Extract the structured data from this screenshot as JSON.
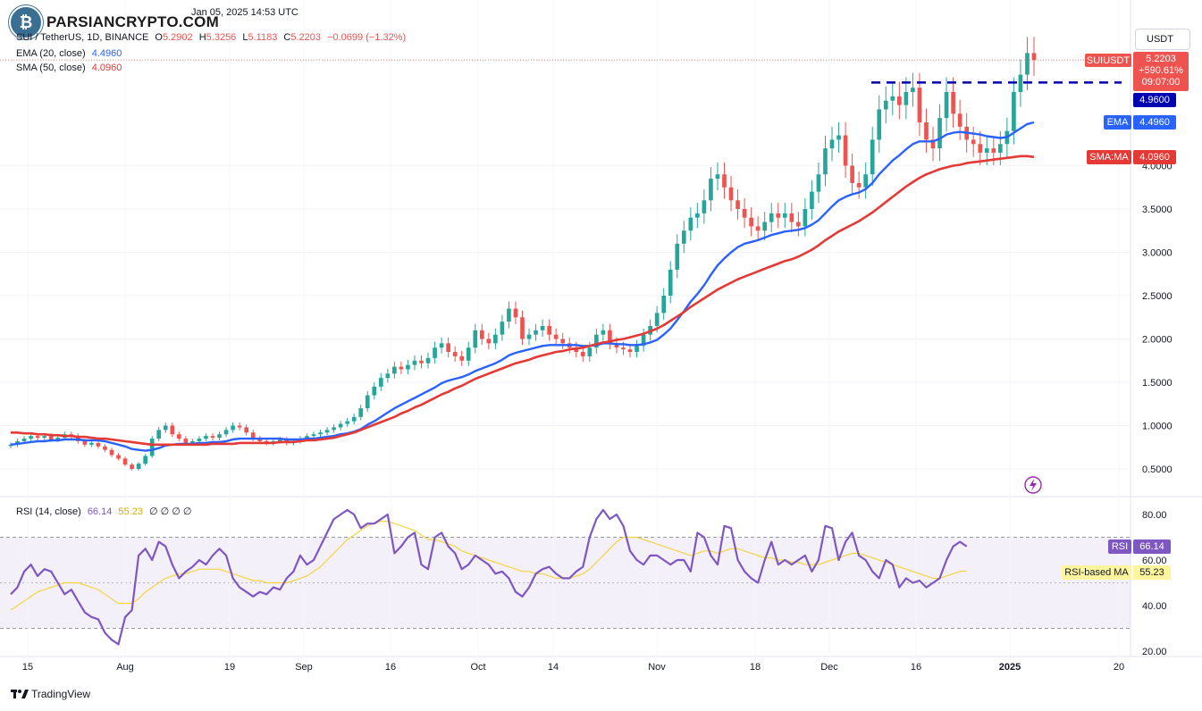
{
  "header": {
    "date_text": "Jan 05, 2025 14:53 UTC",
    "symbol": "SUI / TetherUS, 1D, BINANCE",
    "o_label": "O",
    "o_value": "5.2902",
    "h_label": "H",
    "h_value": "5.3256",
    "l_label": "L",
    "l_value": "5.1183",
    "c_label": "C",
    "c_value": "5.2203",
    "change": "−0.0699 (−1.32%)"
  },
  "indicators": {
    "ema_label": "EMA (20, close)",
    "ema_value": "4.4960",
    "sma_label": "SMA (50, close)",
    "sma_value": "4.0960",
    "rsi_label": "RSI (14, close)",
    "rsi_value": "66.14",
    "rsi_ma_value": "55.23",
    "rsi_extra": "∅ ∅ ∅ ∅"
  },
  "watermark": "PARSIANCRYPTO.COM",
  "currency_button": "USDT",
  "footer_brand": "TradingView",
  "colors": {
    "up": "#26a69a",
    "down": "#ef5350",
    "ema": "#2962ff",
    "sma": "#e53935",
    "rsi": "#7e57c2",
    "rsi_ma": "#f5d442",
    "level": "#0000b3"
  },
  "chart_data": {
    "type": "candlestick",
    "symbol": "SUIUSDT",
    "timeframe": "1D",
    "x_ticks": [
      "15",
      "Aug",
      "19",
      "Sep",
      "16",
      "Oct",
      "14",
      "Nov",
      "18",
      "Dec",
      "16",
      "2025",
      "20"
    ],
    "y_ticks": [
      "0.5000",
      "1.0000",
      "1.5000",
      "2.0000",
      "2.5000",
      "3.0000",
      "3.5000",
      "4.0000"
    ],
    "ylim": [
      0.0,
      5.6
    ],
    "rsi_ticks": [
      "20.00",
      "40.00",
      "60.00",
      "80.00"
    ],
    "rsi_ylim": [
      20,
      86
    ],
    "rsi_band": [
      30,
      70
    ],
    "horizontal_level": 4.96,
    "badges": {
      "symbol": "SUIUSDT",
      "price": "5.2203",
      "change": "+590.61%",
      "countdown": "09:07:00",
      "level": "4.9600",
      "ema_label": "EMA",
      "ema": "4.4960",
      "sma_label": "SMA:MA",
      "sma": "4.0960",
      "rsi_label": "RSI",
      "rsi": "66.14",
      "rsi_ma_label": "RSI-based MA",
      "rsi_ma": "55.23"
    },
    "close_series": [
      0.78,
      0.82,
      0.85,
      0.88,
      0.86,
      0.88,
      0.84,
      0.86,
      0.9,
      0.88,
      0.82,
      0.78,
      0.8,
      0.76,
      0.72,
      0.66,
      0.62,
      0.55,
      0.5,
      0.56,
      0.65,
      0.85,
      0.95,
      1.0,
      0.9,
      0.85,
      0.8,
      0.82,
      0.85,
      0.88,
      0.86,
      0.9,
      0.95,
      1.0,
      0.98,
      0.92,
      0.85,
      0.82,
      0.8,
      0.82,
      0.84,
      0.8,
      0.82,
      0.85,
      0.88,
      0.9,
      0.92,
      0.95,
      0.98,
      1.02,
      1.05,
      1.1,
      1.2,
      1.35,
      1.45,
      1.55,
      1.6,
      1.68,
      1.65,
      1.7,
      1.75,
      1.72,
      1.78,
      1.9,
      1.95,
      1.85,
      1.8,
      1.75,
      1.9,
      2.1,
      2.0,
      1.95,
      2.05,
      2.2,
      2.35,
      2.25,
      2.0,
      2.05,
      2.1,
      2.15,
      2.05,
      2.0,
      1.95,
      1.9,
      1.85,
      1.8,
      1.9,
      2.05,
      2.1,
      1.95,
      1.9,
      1.88,
      1.85,
      1.92,
      2.05,
      2.15,
      2.3,
      2.5,
      2.8,
      3.1,
      3.25,
      3.4,
      3.45,
      3.6,
      3.85,
      3.9,
      3.75,
      3.6,
      3.5,
      3.4,
      3.3,
      3.25,
      3.35,
      3.45,
      3.4,
      3.45,
      3.35,
      3.3,
      3.5,
      3.7,
      3.9,
      4.2,
      4.3,
      4.35,
      4.0,
      3.8,
      3.75,
      3.9,
      4.3,
      4.65,
      4.75,
      4.8,
      4.7,
      4.85,
      4.9,
      4.5,
      4.3,
      4.2,
      4.55,
      4.85,
      4.6,
      4.45,
      4.3,
      4.25,
      4.15,
      4.2,
      4.15,
      4.25,
      4.4,
      4.85,
      5.05,
      5.3,
      5.22
    ],
    "ema20": [
      0.78,
      0.79,
      0.8,
      0.81,
      0.82,
      0.82,
      0.83,
      0.83,
      0.84,
      0.84,
      0.84,
      0.83,
      0.83,
      0.83,
      0.82,
      0.8,
      0.78,
      0.76,
      0.73,
      0.72,
      0.71,
      0.72,
      0.74,
      0.77,
      0.78,
      0.79,
      0.79,
      0.79,
      0.8,
      0.8,
      0.81,
      0.81,
      0.82,
      0.84,
      0.85,
      0.85,
      0.85,
      0.85,
      0.85,
      0.85,
      0.85,
      0.84,
      0.84,
      0.84,
      0.85,
      0.85,
      0.86,
      0.87,
      0.88,
      0.9,
      0.91,
      0.93,
      0.96,
      1.01,
      1.05,
      1.1,
      1.15,
      1.2,
      1.24,
      1.28,
      1.32,
      1.36,
      1.4,
      1.44,
      1.49,
      1.52,
      1.54,
      1.56,
      1.59,
      1.63,
      1.66,
      1.69,
      1.72,
      1.76,
      1.81,
      1.84,
      1.86,
      1.88,
      1.9,
      1.92,
      1.93,
      1.93,
      1.93,
      1.93,
      1.93,
      1.92,
      1.92,
      1.93,
      1.95,
      1.95,
      1.94,
      1.94,
      1.93,
      1.93,
      1.94,
      1.96,
      1.99,
      2.05,
      2.12,
      2.22,
      2.32,
      2.43,
      2.52,
      2.62,
      2.74,
      2.85,
      2.93,
      3.0,
      3.06,
      3.1,
      3.12,
      3.14,
      3.17,
      3.2,
      3.22,
      3.24,
      3.25,
      3.26,
      3.28,
      3.32,
      3.37,
      3.45,
      3.53,
      3.6,
      3.64,
      3.67,
      3.69,
      3.73,
      3.8,
      3.9,
      3.98,
      4.06,
      4.12,
      4.19,
      4.25,
      4.28,
      4.28,
      4.28,
      4.31,
      4.36,
      4.38,
      4.39,
      4.38,
      4.37,
      4.36,
      4.34,
      4.33,
      4.32,
      4.33,
      4.38,
      4.43,
      4.48,
      4.5
    ],
    "sma50": [
      0.92,
      0.92,
      0.91,
      0.91,
      0.9,
      0.9,
      0.89,
      0.89,
      0.88,
      0.88,
      0.87,
      0.87,
      0.86,
      0.85,
      0.85,
      0.84,
      0.83,
      0.82,
      0.81,
      0.8,
      0.79,
      0.78,
      0.78,
      0.78,
      0.78,
      0.78,
      0.78,
      0.78,
      0.78,
      0.78,
      0.79,
      0.79,
      0.79,
      0.79,
      0.8,
      0.8,
      0.8,
      0.8,
      0.8,
      0.8,
      0.81,
      0.81,
      0.81,
      0.82,
      0.83,
      0.83,
      0.84,
      0.85,
      0.86,
      0.88,
      0.9,
      0.92,
      0.95,
      0.98,
      1.01,
      1.04,
      1.07,
      1.1,
      1.14,
      1.17,
      1.21,
      1.24,
      1.28,
      1.32,
      1.36,
      1.39,
      1.43,
      1.46,
      1.5,
      1.54,
      1.57,
      1.6,
      1.63,
      1.66,
      1.69,
      1.72,
      1.74,
      1.76,
      1.79,
      1.81,
      1.83,
      1.85,
      1.86,
      1.88,
      1.89,
      1.9,
      1.92,
      1.94,
      1.96,
      1.97,
      1.99,
      2.0,
      2.02,
      2.04,
      2.06,
      2.09,
      2.12,
      2.16,
      2.21,
      2.26,
      2.31,
      2.37,
      2.42,
      2.47,
      2.52,
      2.57,
      2.61,
      2.65,
      2.69,
      2.72,
      2.75,
      2.78,
      2.81,
      2.84,
      2.87,
      2.9,
      2.92,
      2.95,
      2.99,
      3.03,
      3.08,
      3.14,
      3.19,
      3.24,
      3.28,
      3.32,
      3.36,
      3.41,
      3.46,
      3.52,
      3.58,
      3.64,
      3.7,
      3.76,
      3.81,
      3.86,
      3.9,
      3.93,
      3.96,
      3.98,
      4.0,
      4.01,
      4.03,
      4.04,
      4.05,
      4.06,
      4.07,
      4.08,
      4.09,
      4.1,
      4.11,
      4.11,
      4.1
    ],
    "rsi": [
      45,
      48,
      55,
      58,
      53,
      56,
      55,
      50,
      45,
      47,
      42,
      37,
      35,
      34,
      28,
      25,
      23,
      35,
      38,
      62,
      65,
      60,
      68,
      66,
      58,
      52,
      55,
      57,
      60,
      58,
      62,
      65,
      62,
      52,
      48,
      46,
      44,
      46,
      45,
      48,
      47,
      52,
      55,
      62,
      58,
      60,
      66,
      72,
      78,
      80,
      82,
      80,
      74,
      76,
      76,
      78,
      80,
      63,
      66,
      70,
      72,
      58,
      56,
      70,
      72,
      66,
      63,
      56,
      58,
      62,
      60,
      58,
      54,
      55,
      52,
      46,
      44,
      48,
      54,
      56,
      57,
      54,
      52,
      52,
      55,
      57,
      70,
      78,
      82,
      78,
      80,
      75,
      64,
      60,
      58,
      62,
      62,
      60,
      58,
      60,
      60,
      55,
      72,
      70,
      62,
      58,
      75,
      74,
      60,
      55,
      52,
      50,
      60,
      68,
      58,
      60,
      58,
      60,
      62,
      55,
      60,
      75,
      74,
      60,
      68,
      72,
      62,
      60,
      55,
      52,
      60,
      58,
      48,
      52,
      50,
      51,
      48,
      50,
      52,
      60,
      66,
      68,
      66
    ],
    "rsi_ma": [
      38,
      40,
      42,
      44,
      46,
      47,
      48,
      49,
      50,
      50,
      50,
      49,
      48,
      47,
      45,
      43,
      41,
      41,
      41,
      43,
      46,
      48,
      50,
      52,
      53,
      54,
      54,
      55,
      56,
      56,
      56,
      56,
      55,
      54,
      53,
      52,
      51,
      51,
      50,
      50,
      50,
      50,
      51,
      52,
      53,
      55,
      57,
      60,
      63,
      66,
      69,
      71,
      73,
      75,
      76,
      77,
      77,
      76,
      75,
      74,
      73,
      71,
      69,
      69,
      68,
      67,
      66,
      64,
      63,
      62,
      61,
      60,
      59,
      58,
      57,
      56,
      55,
      55,
      54,
      54,
      53,
      52,
      52,
      52,
      53,
      54,
      56,
      59,
      62,
      65,
      68,
      70,
      70,
      70,
      69,
      68,
      67,
      66,
      65,
      64,
      63,
      62,
      63,
      64,
      64,
      63,
      64,
      65,
      65,
      64,
      63,
      62,
      61,
      61,
      60,
      60,
      59,
      59,
      58,
      58,
      58,
      59,
      60,
      61,
      62,
      63,
      63,
      62,
      61,
      60,
      59,
      58,
      57,
      56,
      55,
      54,
      53,
      52,
      52,
      53,
      54,
      55,
      55.23
    ]
  }
}
